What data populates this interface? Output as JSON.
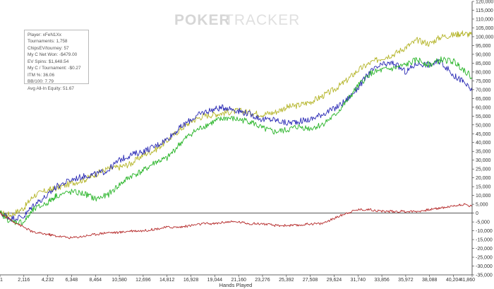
{
  "watermark": {
    "part1": "POKER",
    "part2": "TRACKER"
  },
  "stats": [
    "Player: xFeN1Xx",
    "Tournaments: 1,758",
    "ChipsEV/tourney: 57",
    "My C Net Won: -$479.00",
    "EV Spins: $1,648.54",
    "My C / Tournament: -$0.27",
    "ITM %: 36.06",
    "BB/100: 7.79",
    "Avg All-In Equity: 51.67"
  ],
  "chart_data": {
    "type": "line",
    "xlabel": "Hands Played",
    "ylabel": "",
    "xlim": [
      1,
      41860
    ],
    "ylim": [
      -35000,
      120000
    ],
    "x_ticks": [
      "1",
      "2,116",
      "4,232",
      "6,348",
      "8,464",
      "10,580",
      "12,696",
      "14,812",
      "16,928",
      "19,044",
      "21,160",
      "23,276",
      "25,392",
      "27,508",
      "29,624",
      "31,740",
      "33,856",
      "35,972",
      "38,088",
      "40,204",
      "41,860"
    ],
    "y_ticks": [
      "-35,000",
      "-30,000",
      "-25,000",
      "-20,000",
      "-15,000",
      "-10,000",
      "-5,000",
      "0",
      "5,000",
      "10,000",
      "15,000",
      "20,000",
      "25,000",
      "30,000",
      "35,000",
      "40,000",
      "45,000",
      "50,000",
      "55,000",
      "60,000",
      "65,000",
      "70,000",
      "75,000",
      "80,000",
      "85,000",
      "90,000",
      "95,000",
      "100,000",
      "105,000",
      "110,000",
      "115,000",
      "120,000"
    ],
    "x": [
      1,
      1000,
      2116,
      3000,
      4232,
      5000,
      6348,
      7500,
      8464,
      9500,
      10580,
      11600,
      12696,
      13800,
      14812,
      15900,
      16928,
      18000,
      19044,
      20000,
      21160,
      22200,
      23276,
      24300,
      25392,
      26400,
      27508,
      28500,
      29624,
      30700,
      31740,
      32800,
      33856,
      34900,
      35972,
      37000,
      38088,
      39100,
      40204,
      41000,
      41860
    ],
    "series": [
      {
        "color": "#b5b52a",
        "values": [
          0,
          -1000,
          3000,
          10000,
          13000,
          14000,
          17000,
          19000,
          22000,
          25000,
          26000,
          28000,
          33000,
          36000,
          41000,
          47000,
          52000,
          55000,
          56000,
          57000,
          58000,
          57000,
          56000,
          57000,
          60000,
          61000,
          63000,
          66000,
          70000,
          75000,
          81000,
          85000,
          88000,
          90000,
          94000,
          98000,
          96000,
          100000,
          101000,
          102000,
          101000
        ]
      },
      {
        "color": "#2a2ab5",
        "values": [
          0,
          -3000,
          -2000,
          5000,
          10000,
          15000,
          19000,
          21000,
          22000,
          24000,
          30000,
          33000,
          35000,
          38000,
          42000,
          48000,
          53000,
          57000,
          59000,
          60000,
          58000,
          56000,
          53000,
          53000,
          51000,
          52000,
          53000,
          56000,
          59000,
          64000,
          71000,
          80000,
          84000,
          85000,
          80000,
          85000,
          84000,
          86000,
          78000,
          75000,
          69000
        ]
      },
      {
        "color": "#2ab52a",
        "values": [
          0,
          -5000,
          -5000,
          2000,
          6000,
          10000,
          12000,
          11000,
          8000,
          10000,
          16000,
          21000,
          24000,
          29000,
          31000,
          39000,
          45000,
          49000,
          52000,
          54000,
          53000,
          52000,
          48000,
          46000,
          47000,
          49000,
          48000,
          50000,
          55000,
          63000,
          72000,
          79000,
          81000,
          82000,
          84000,
          87000,
          84000,
          87000,
          86000,
          82000,
          77000
        ]
      },
      {
        "color": "#b52a2a",
        "values": [
          0,
          -4000,
          -8000,
          -11000,
          -12000,
          -13000,
          -14000,
          -13000,
          -12000,
          -11000,
          -11000,
          -10000,
          -10000,
          -9000,
          -8000,
          -8000,
          -7000,
          -6000,
          -6000,
          -5000,
          -5000,
          -6000,
          -6000,
          -7000,
          -7000,
          -7000,
          -6000,
          -6000,
          -3000,
          0,
          2000,
          2000,
          1000,
          1000,
          1000,
          1000,
          2000,
          3000,
          4000,
          5000,
          4000
        ]
      }
    ]
  }
}
